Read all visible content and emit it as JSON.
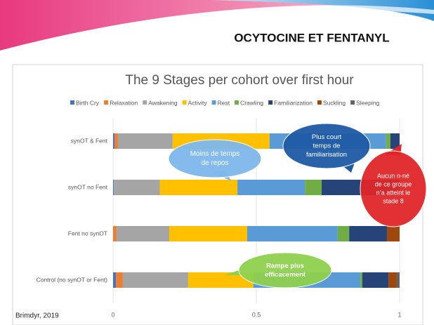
{
  "slide": {
    "title": "OCYTOCINE ET FENTANYL",
    "source": "Brimdyr, 2019"
  },
  "chart_data": {
    "type": "stacked-bar-horizontal",
    "title": "The 9 Stages per cohort over first hour",
    "categories": [
      "synOT & Fent",
      "synOT no Fent",
      "Fent  no synOT",
      "Control (no synOT or Fent)"
    ],
    "series": [
      {
        "name": "Birth Cry",
        "color": "#4472c4",
        "values": [
          0.005,
          0.003,
          0,
          0.01
        ]
      },
      {
        "name": "Relaxation",
        "color": "#ed7d31",
        "values": [
          0.012,
          0,
          0.012,
          0.024
        ]
      },
      {
        "name": "Awakening",
        "color": "#a5a5a5",
        "values": [
          0.191,
          0.16,
          0.184,
          0.228
        ]
      },
      {
        "name": "Activity",
        "color": "#ffc000",
        "values": [
          0.338,
          0.271,
          0.272,
          0.228
        ]
      },
      {
        "name": "Rest",
        "color": "#5b9bd5",
        "values": [
          0.407,
          0.236,
          0.316,
          0.373
        ]
      },
      {
        "name": "Crawling",
        "color": "#70ad47",
        "values": [
          0.015,
          0.058,
          0.04,
          0.007
        ]
      },
      {
        "name": "Familiarization",
        "color": "#264478",
        "values": [
          0.032,
          0.272,
          0.132,
          0.091
        ]
      },
      {
        "name": "Suckling",
        "color": "#9e480e",
        "values": [
          0,
          0,
          0.044,
          0.029
        ]
      },
      {
        "name": "Sleeping",
        "color": "#636363",
        "values": [
          0,
          0,
          0,
          0.01
        ]
      }
    ],
    "xlim": [
      0,
      1
    ],
    "xticks": [
      0,
      0.5,
      1
    ],
    "grid": true,
    "legend": "top",
    "annotations": [
      {
        "lines": [
          "Moins de temps",
          "de repos"
        ],
        "color": "#7fb8ec"
      },
      {
        "lines": [
          "Plus court",
          "temps de",
          "familiarisation"
        ],
        "color": "#1f5aa6"
      },
      {
        "lines": [
          "Aucun n-né",
          "de ce groupe",
          "n’a atteint le",
          "stade 8"
        ],
        "color": "#e0262a"
      },
      {
        "lines": [
          "Rampe plus",
          "efficacement"
        ],
        "color": "#8fd14f"
      }
    ]
  }
}
